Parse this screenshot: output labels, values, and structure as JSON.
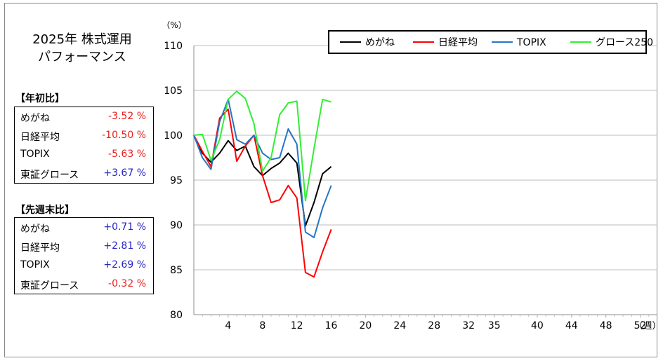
{
  "title_lines": [
    "2025年 株式運用",
    "パフォーマンス"
  ],
  "ytd": {
    "heading": "【年初比】",
    "rows": [
      {
        "label": "めがね",
        "value": "-3.52 %"
      },
      {
        "label": "日経平均",
        "value": "-10.50 %"
      },
      {
        "label": "TOPIX",
        "value": "-5.63 %"
      },
      {
        "label": "東証グロース",
        "value": "+3.67 %"
      }
    ]
  },
  "wow": {
    "heading": "【先週末比】",
    "rows": [
      {
        "label": "めがね",
        "value": "+0.71 %"
      },
      {
        "label": "日経平均",
        "value": "+2.81 %"
      },
      {
        "label": "TOPIX",
        "value": "+2.69 %"
      },
      {
        "label": "東証グロース",
        "value": "-0.32 %"
      }
    ]
  },
  "colors": {
    "neg": "#e8201c",
    "pos": "#2626c8"
  },
  "chart_data": {
    "type": "line",
    "ylabel": "（%）",
    "xlabel": "（週）",
    "ylim": [
      80,
      110
    ],
    "xlim": [
      0,
      54
    ],
    "yticks": [
      80,
      85,
      90,
      95,
      100,
      105,
      110
    ],
    "xticks": [
      4,
      8,
      12,
      16,
      20,
      24,
      28,
      32,
      35,
      40,
      44,
      48,
      52
    ],
    "grid": "horizontal",
    "legend_position": "top-right",
    "x": [
      0,
      1,
      2,
      3,
      4,
      5,
      6,
      7,
      8,
      9,
      10,
      11,
      12,
      13,
      14,
      15,
      16
    ],
    "series": [
      {
        "name": "めがね",
        "color": "#000000",
        "values": [
          100,
          98.0,
          97.0,
          98.0,
          99.4,
          98.3,
          98.8,
          96.5,
          95.5,
          96.3,
          96.9,
          98.0,
          96.9,
          89.9,
          92.5,
          95.7,
          96.5
        ]
      },
      {
        "name": "日経平均",
        "color": "#ff0000",
        "values": [
          100,
          98.2,
          96.5,
          101.9,
          102.9,
          97.1,
          98.8,
          100.0,
          95.5,
          92.5,
          92.8,
          94.4,
          93.0,
          84.7,
          84.2,
          87.0,
          89.5
        ]
      },
      {
        "name": "TOPIX",
        "color": "#2475c4",
        "values": [
          100,
          97.5,
          96.2,
          101.5,
          104.0,
          99.5,
          99.0,
          100.0,
          98.0,
          97.3,
          97.5,
          100.7,
          99.0,
          89.2,
          88.6,
          91.9,
          94.4
        ]
      },
      {
        "name": "グロース250",
        "color": "#33ee33",
        "values": [
          100,
          100.1,
          97.2,
          99.5,
          104.0,
          104.9,
          104.1,
          101.3,
          96.0,
          97.5,
          102.3,
          103.6,
          103.8,
          92.7,
          98.5,
          104.0,
          103.7
        ]
      }
    ]
  }
}
